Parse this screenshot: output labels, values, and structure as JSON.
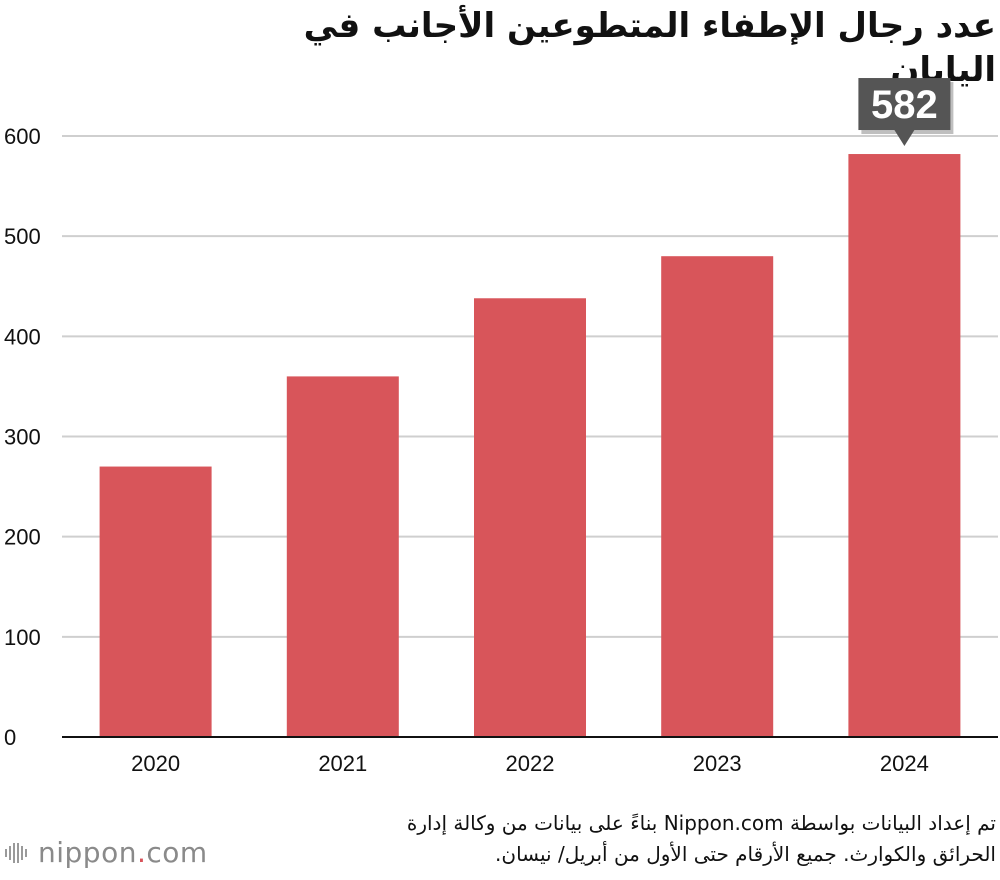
{
  "title": "عدد رجال الإطفاء المتطوعين الأجانب في اليابان",
  "chart_data": {
    "type": "bar",
    "categories": [
      "2020",
      "2021",
      "2022",
      "2023",
      "2024"
    ],
    "values": [
      270,
      360,
      438,
      480,
      582
    ],
    "ylim": [
      0,
      600
    ],
    "yticks": [
      0,
      100,
      200,
      300,
      400,
      500,
      600
    ],
    "grid": true,
    "bar_color": "#d8555a",
    "callout": {
      "category": "2024",
      "label": "582",
      "color": "#555555"
    },
    "xlabel": "",
    "ylabel": ""
  },
  "footer": {
    "line1": "تم إعداد البيانات بواسطة Nippon.com بناءً على بيانات من وكالة إدارة",
    "line2": "الحرائق والكوارث. جميع الأرقام حتى الأول من أبريل/ نيسان."
  },
  "logo": {
    "name": "nippon",
    "dot": ".",
    "suffix": "com"
  }
}
